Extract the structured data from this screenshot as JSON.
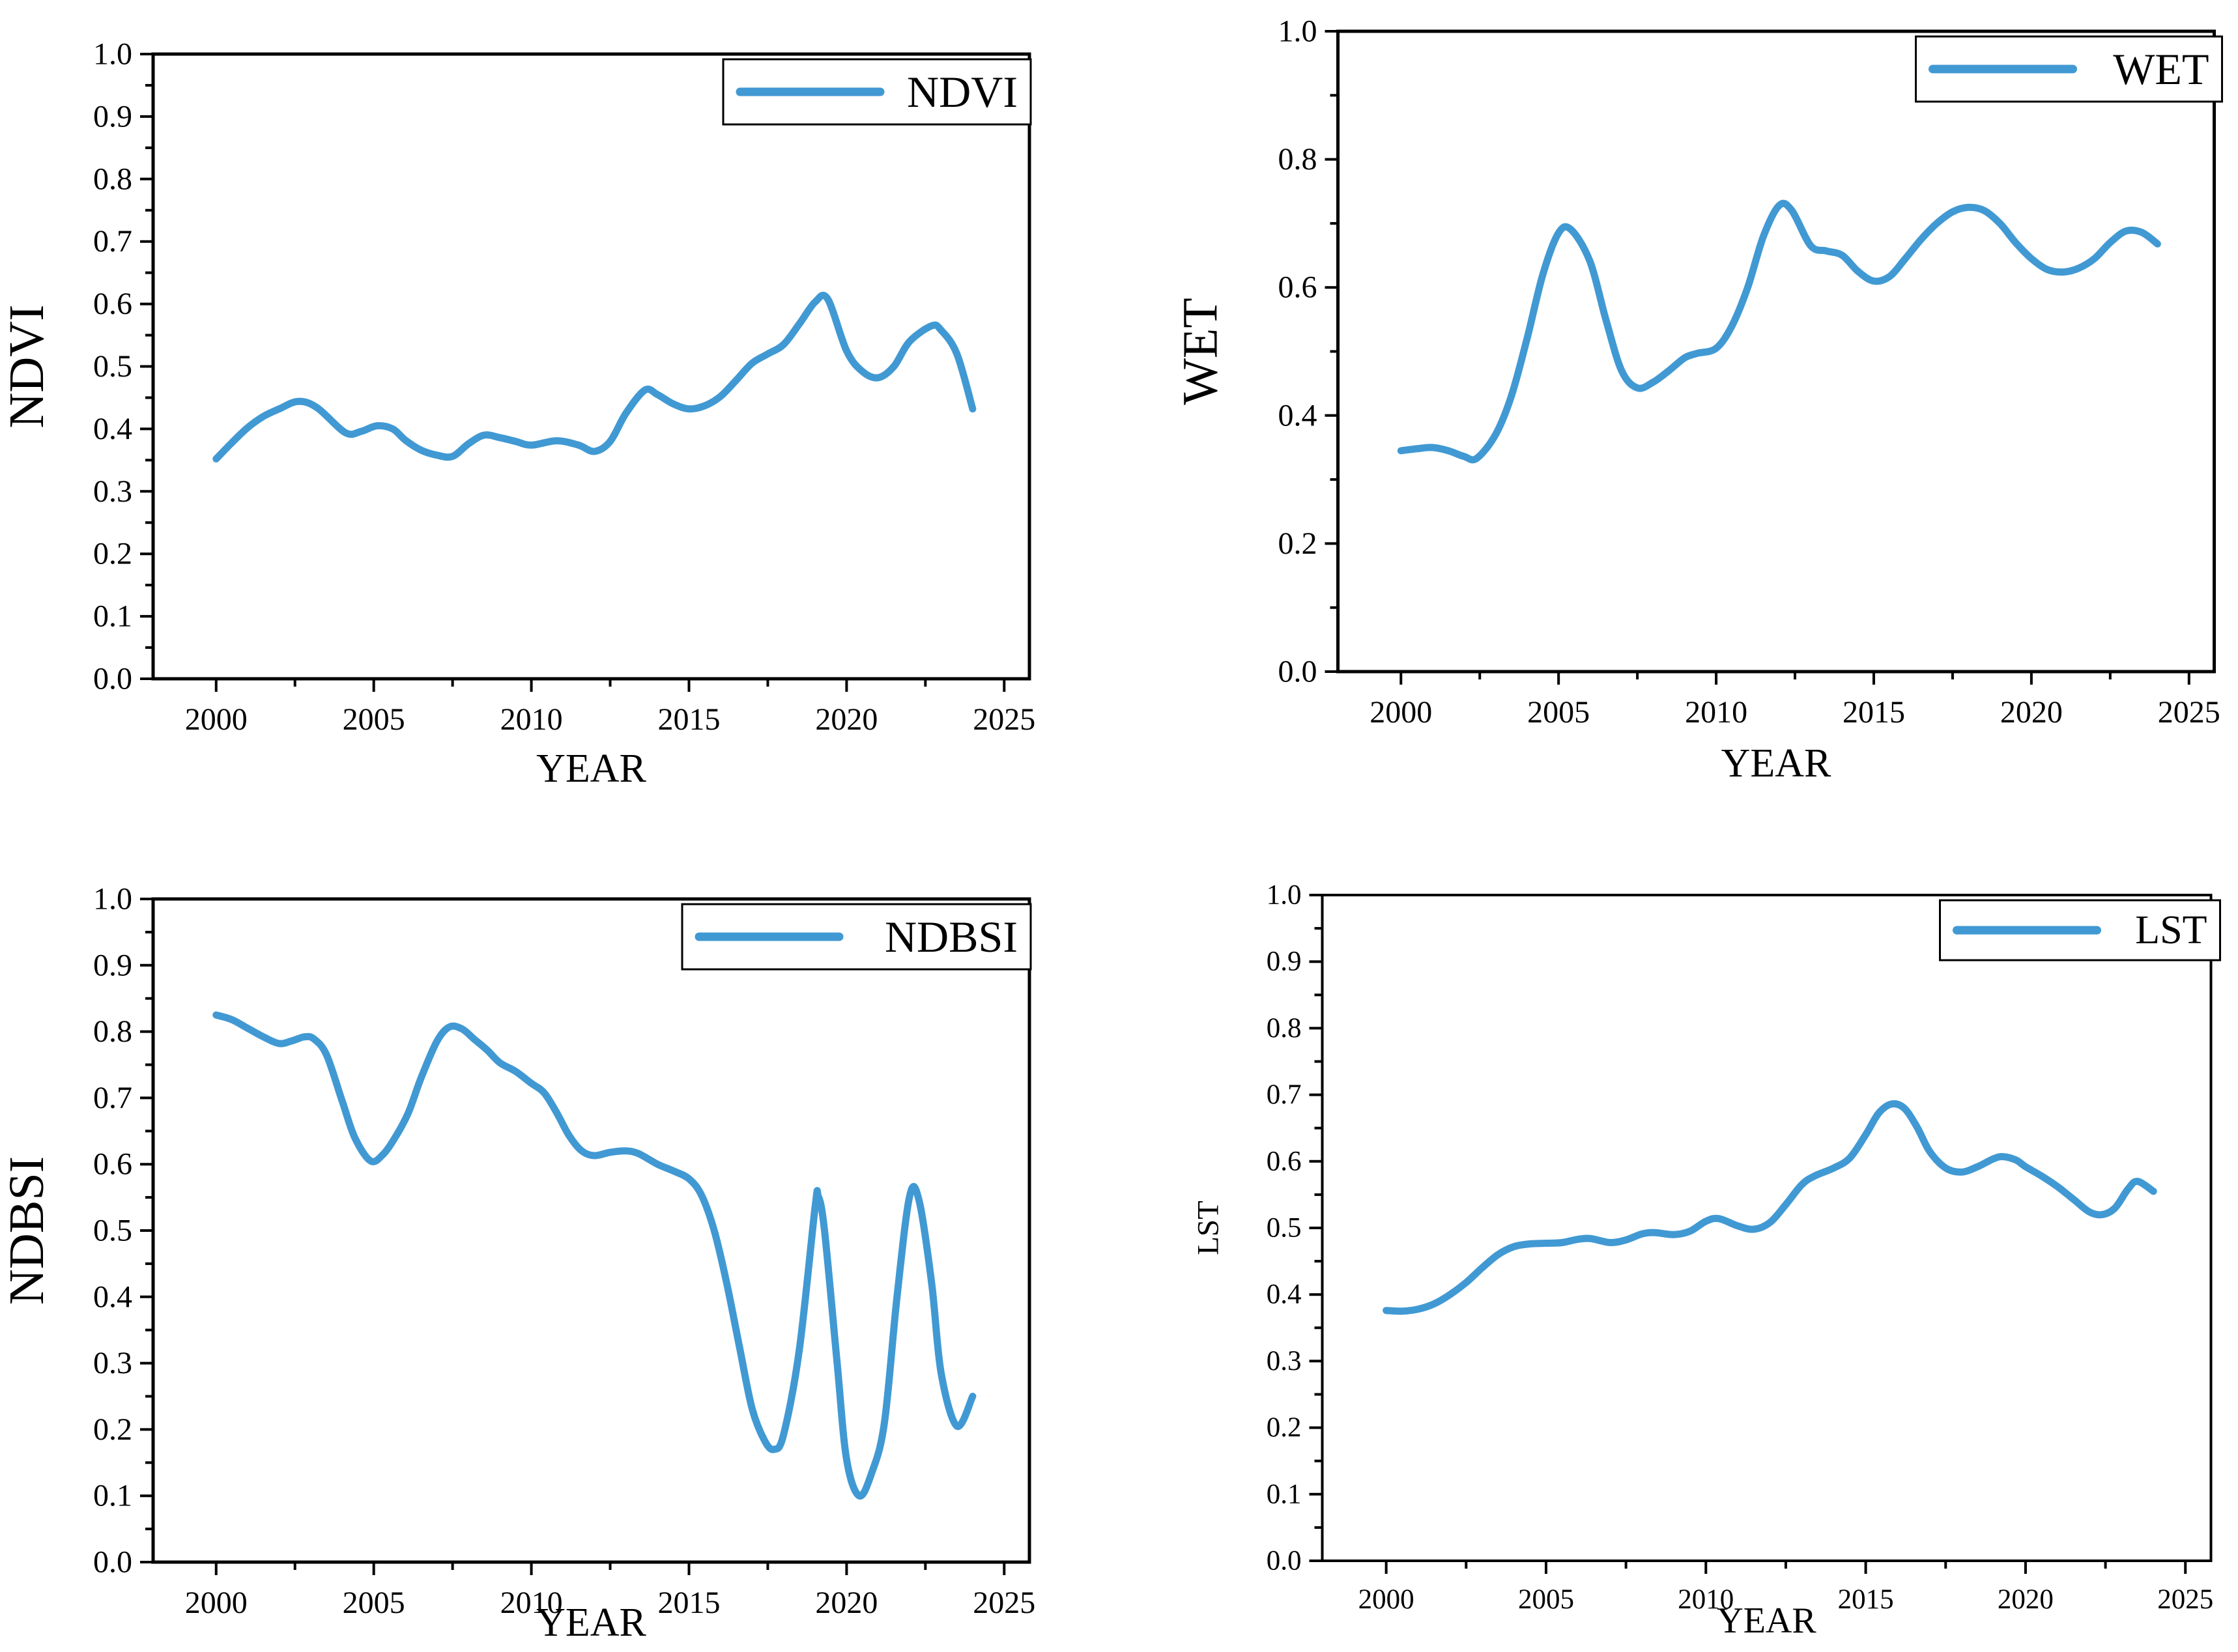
{
  "figure": {
    "background": "#ffffff",
    "axis_color": "#000000",
    "line_color": "#4199D3",
    "legend_box_fill": "#ffffff",
    "legend_box_border": "#000000"
  },
  "chart_data": [
    {
      "id": "ndvi",
      "type": "line",
      "title": "",
      "xlabel": "YEAR",
      "ylabel": "NDVI",
      "legend": "NDVI",
      "legend_position": "top-right",
      "grid": false,
      "xlim": [
        1998,
        2025.8
      ],
      "ylim": [
        0,
        1
      ],
      "xticks": [
        2000,
        2005,
        2010,
        2015,
        2020,
        2025
      ],
      "x_minor_step": 2.5,
      "ytick_step": 0.1,
      "ytick_decimals": 1,
      "y_minor_step": 0.05,
      "series": [
        {
          "name": "NDVI",
          "x": [
            2000,
            2000.5,
            2001,
            2001.5,
            2002,
            2002.6,
            2003.2,
            2004.1,
            2004.6,
            2005.1,
            2005.6,
            2006,
            2006.5,
            2007,
            2007.5,
            2008,
            2008.5,
            2009,
            2009.5,
            2010,
            2010.8,
            2011.5,
            2012,
            2012.5,
            2013,
            2013.6,
            2014,
            2014.5,
            2015,
            2015.5,
            2016,
            2016.5,
            2017,
            2017.5,
            2018,
            2018.5,
            2019,
            2019.4,
            2020,
            2020.5,
            2021,
            2021.5,
            2022,
            2022.7,
            2023,
            2023.5,
            2024
          ],
          "y": [
            0.352,
            0.378,
            0.402,
            0.42,
            0.432,
            0.444,
            0.434,
            0.394,
            0.396,
            0.405,
            0.4,
            0.382,
            0.366,
            0.358,
            0.356,
            0.376,
            0.39,
            0.386,
            0.38,
            0.374,
            0.381,
            0.374,
            0.364,
            0.38,
            0.425,
            0.462,
            0.455,
            0.44,
            0.432,
            0.437,
            0.452,
            0.478,
            0.505,
            0.52,
            0.535,
            0.568,
            0.603,
            0.608,
            0.525,
            0.492,
            0.482,
            0.5,
            0.54,
            0.565,
            0.558,
            0.52,
            0.432
          ]
        }
      ]
    },
    {
      "id": "wet",
      "type": "line",
      "title": "",
      "xlabel": "YEAR",
      "ylabel": "WET",
      "legend": "WET",
      "legend_position": "top-right",
      "grid": false,
      "xlim": [
        1998,
        2025.8
      ],
      "ylim": [
        0,
        1
      ],
      "xticks": [
        2000,
        2005,
        2010,
        2015,
        2020,
        2025
      ],
      "x_minor_step": 2.5,
      "ytick_step": 0.2,
      "ytick_decimals": 1,
      "y_minor_step": 0.1,
      "series": [
        {
          "name": "WET",
          "x": [
            2000,
            2000.5,
            2001,
            2001.5,
            2002,
            2002.4,
            2003,
            2003.5,
            2004,
            2004.5,
            2005,
            2005.4,
            2006,
            2006.5,
            2007,
            2007.5,
            2008,
            2008.5,
            2009,
            2009.4,
            2010,
            2010.5,
            2011,
            2011.5,
            2012,
            2012.4,
            2013,
            2013.5,
            2014,
            2014.5,
            2015,
            2015.5,
            2016,
            2016.5,
            2017,
            2017.5,
            2018,
            2018.5,
            2019,
            2019.5,
            2020,
            2020.5,
            2021,
            2021.5,
            2022,
            2022.5,
            2023,
            2023.5,
            2024
          ],
          "y": [
            0.345,
            0.348,
            0.35,
            0.345,
            0.336,
            0.333,
            0.37,
            0.43,
            0.52,
            0.62,
            0.685,
            0.69,
            0.64,
            0.55,
            0.47,
            0.443,
            0.452,
            0.47,
            0.49,
            0.497,
            0.505,
            0.54,
            0.6,
            0.68,
            0.728,
            0.72,
            0.665,
            0.657,
            0.65,
            0.625,
            0.61,
            0.617,
            0.645,
            0.675,
            0.7,
            0.718,
            0.725,
            0.72,
            0.7,
            0.67,
            0.645,
            0.628,
            0.624,
            0.63,
            0.645,
            0.67,
            0.688,
            0.686,
            0.668
          ]
        }
      ]
    },
    {
      "id": "ndbsi",
      "type": "line",
      "title": "",
      "xlabel": "YEAR",
      "ylabel": "NDBSI",
      "legend": "NDBSI",
      "legend_position": "top-right",
      "grid": false,
      "xlim": [
        1998,
        2025.8
      ],
      "ylim": [
        0,
        1
      ],
      "xticks": [
        2000,
        2005,
        2010,
        2015,
        2020,
        2025
      ],
      "x_minor_step": 2.5,
      "ytick_step": 0.1,
      "ytick_decimals": 1,
      "y_minor_step": 0.05,
      "series": [
        {
          "name": "NDBSI",
          "x": [
            2000,
            2000.5,
            2001,
            2001.5,
            2002,
            2002.4,
            2002.8,
            2003.1,
            2003.5,
            2004,
            2004.4,
            2004.9,
            2005.3,
            2005.7,
            2006.1,
            2006.5,
            2007,
            2007.4,
            2007.8,
            2008.2,
            2008.6,
            2009,
            2009.5,
            2010,
            2010.4,
            2010.8,
            2011.2,
            2011.6,
            2012,
            2012.5,
            2013,
            2013.4,
            2014,
            2014.5,
            2015,
            2015.4,
            2015.8,
            2016.2,
            2016.6,
            2017,
            2017.4,
            2017.7,
            2018,
            2018.5,
            2019,
            2019.1,
            2019.3,
            2019.7,
            2020,
            2020.4,
            2020.8,
            2021.2,
            2021.6,
            2022,
            2022.3,
            2022.7,
            2023,
            2023.5,
            2024
          ],
          "y": [
            0.825,
            0.818,
            0.805,
            0.792,
            0.782,
            0.786,
            0.792,
            0.789,
            0.765,
            0.695,
            0.64,
            0.605,
            0.615,
            0.642,
            0.678,
            0.73,
            0.785,
            0.807,
            0.804,
            0.788,
            0.772,
            0.753,
            0.74,
            0.722,
            0.708,
            0.678,
            0.643,
            0.62,
            0.613,
            0.618,
            0.62,
            0.616,
            0.6,
            0.59,
            0.578,
            0.553,
            0.5,
            0.42,
            0.325,
            0.232,
            0.183,
            0.17,
            0.192,
            0.32,
            0.535,
            0.552,
            0.5,
            0.3,
            0.155,
            0.1,
            0.135,
            0.21,
            0.4,
            0.552,
            0.545,
            0.42,
            0.285,
            0.205,
            0.25
          ]
        }
      ]
    },
    {
      "id": "lst",
      "type": "line",
      "title": "",
      "xlabel": "YEAR",
      "ylabel": "LST",
      "legend": "LST",
      "legend_position": "top-right",
      "grid": false,
      "xlim": [
        1998,
        2025.8
      ],
      "ylim": [
        0,
        1
      ],
      "xticks": [
        2000,
        2005,
        2010,
        2015,
        2020,
        2025
      ],
      "x_minor_step": 2.5,
      "ytick_step": 0.1,
      "ytick_decimals": 1,
      "y_minor_step": 0.05,
      "series": [
        {
          "name": "LST",
          "x": [
            2000,
            2000.5,
            2001,
            2001.5,
            2002,
            2002.5,
            2003,
            2003.5,
            2004,
            2004.5,
            2005,
            2005.5,
            2006,
            2006.4,
            2007,
            2007.5,
            2008,
            2008.4,
            2009,
            2009.5,
            2010,
            2010.4,
            2011,
            2011.5,
            2012,
            2012.5,
            2013,
            2013.4,
            2014,
            2014.5,
            2015,
            2015.4,
            2015.8,
            2016.2,
            2016.6,
            2017,
            2017.5,
            2018,
            2018.5,
            2019,
            2019.3,
            2019.7,
            2020,
            2020.5,
            2021,
            2021.5,
            2022,
            2022.4,
            2022.8,
            2023.2,
            2023.5,
            2024
          ],
          "y": [
            0.376,
            0.375,
            0.378,
            0.386,
            0.4,
            0.418,
            0.44,
            0.46,
            0.472,
            0.476,
            0.477,
            0.478,
            0.483,
            0.484,
            0.478,
            0.482,
            0.491,
            0.493,
            0.49,
            0.495,
            0.51,
            0.514,
            0.503,
            0.498,
            0.508,
            0.535,
            0.565,
            0.578,
            0.59,
            0.605,
            0.64,
            0.672,
            0.686,
            0.68,
            0.652,
            0.615,
            0.59,
            0.584,
            0.592,
            0.604,
            0.607,
            0.602,
            0.592,
            0.578,
            0.562,
            0.543,
            0.524,
            0.52,
            0.53,
            0.558,
            0.57,
            0.555
          ]
        }
      ]
    }
  ]
}
